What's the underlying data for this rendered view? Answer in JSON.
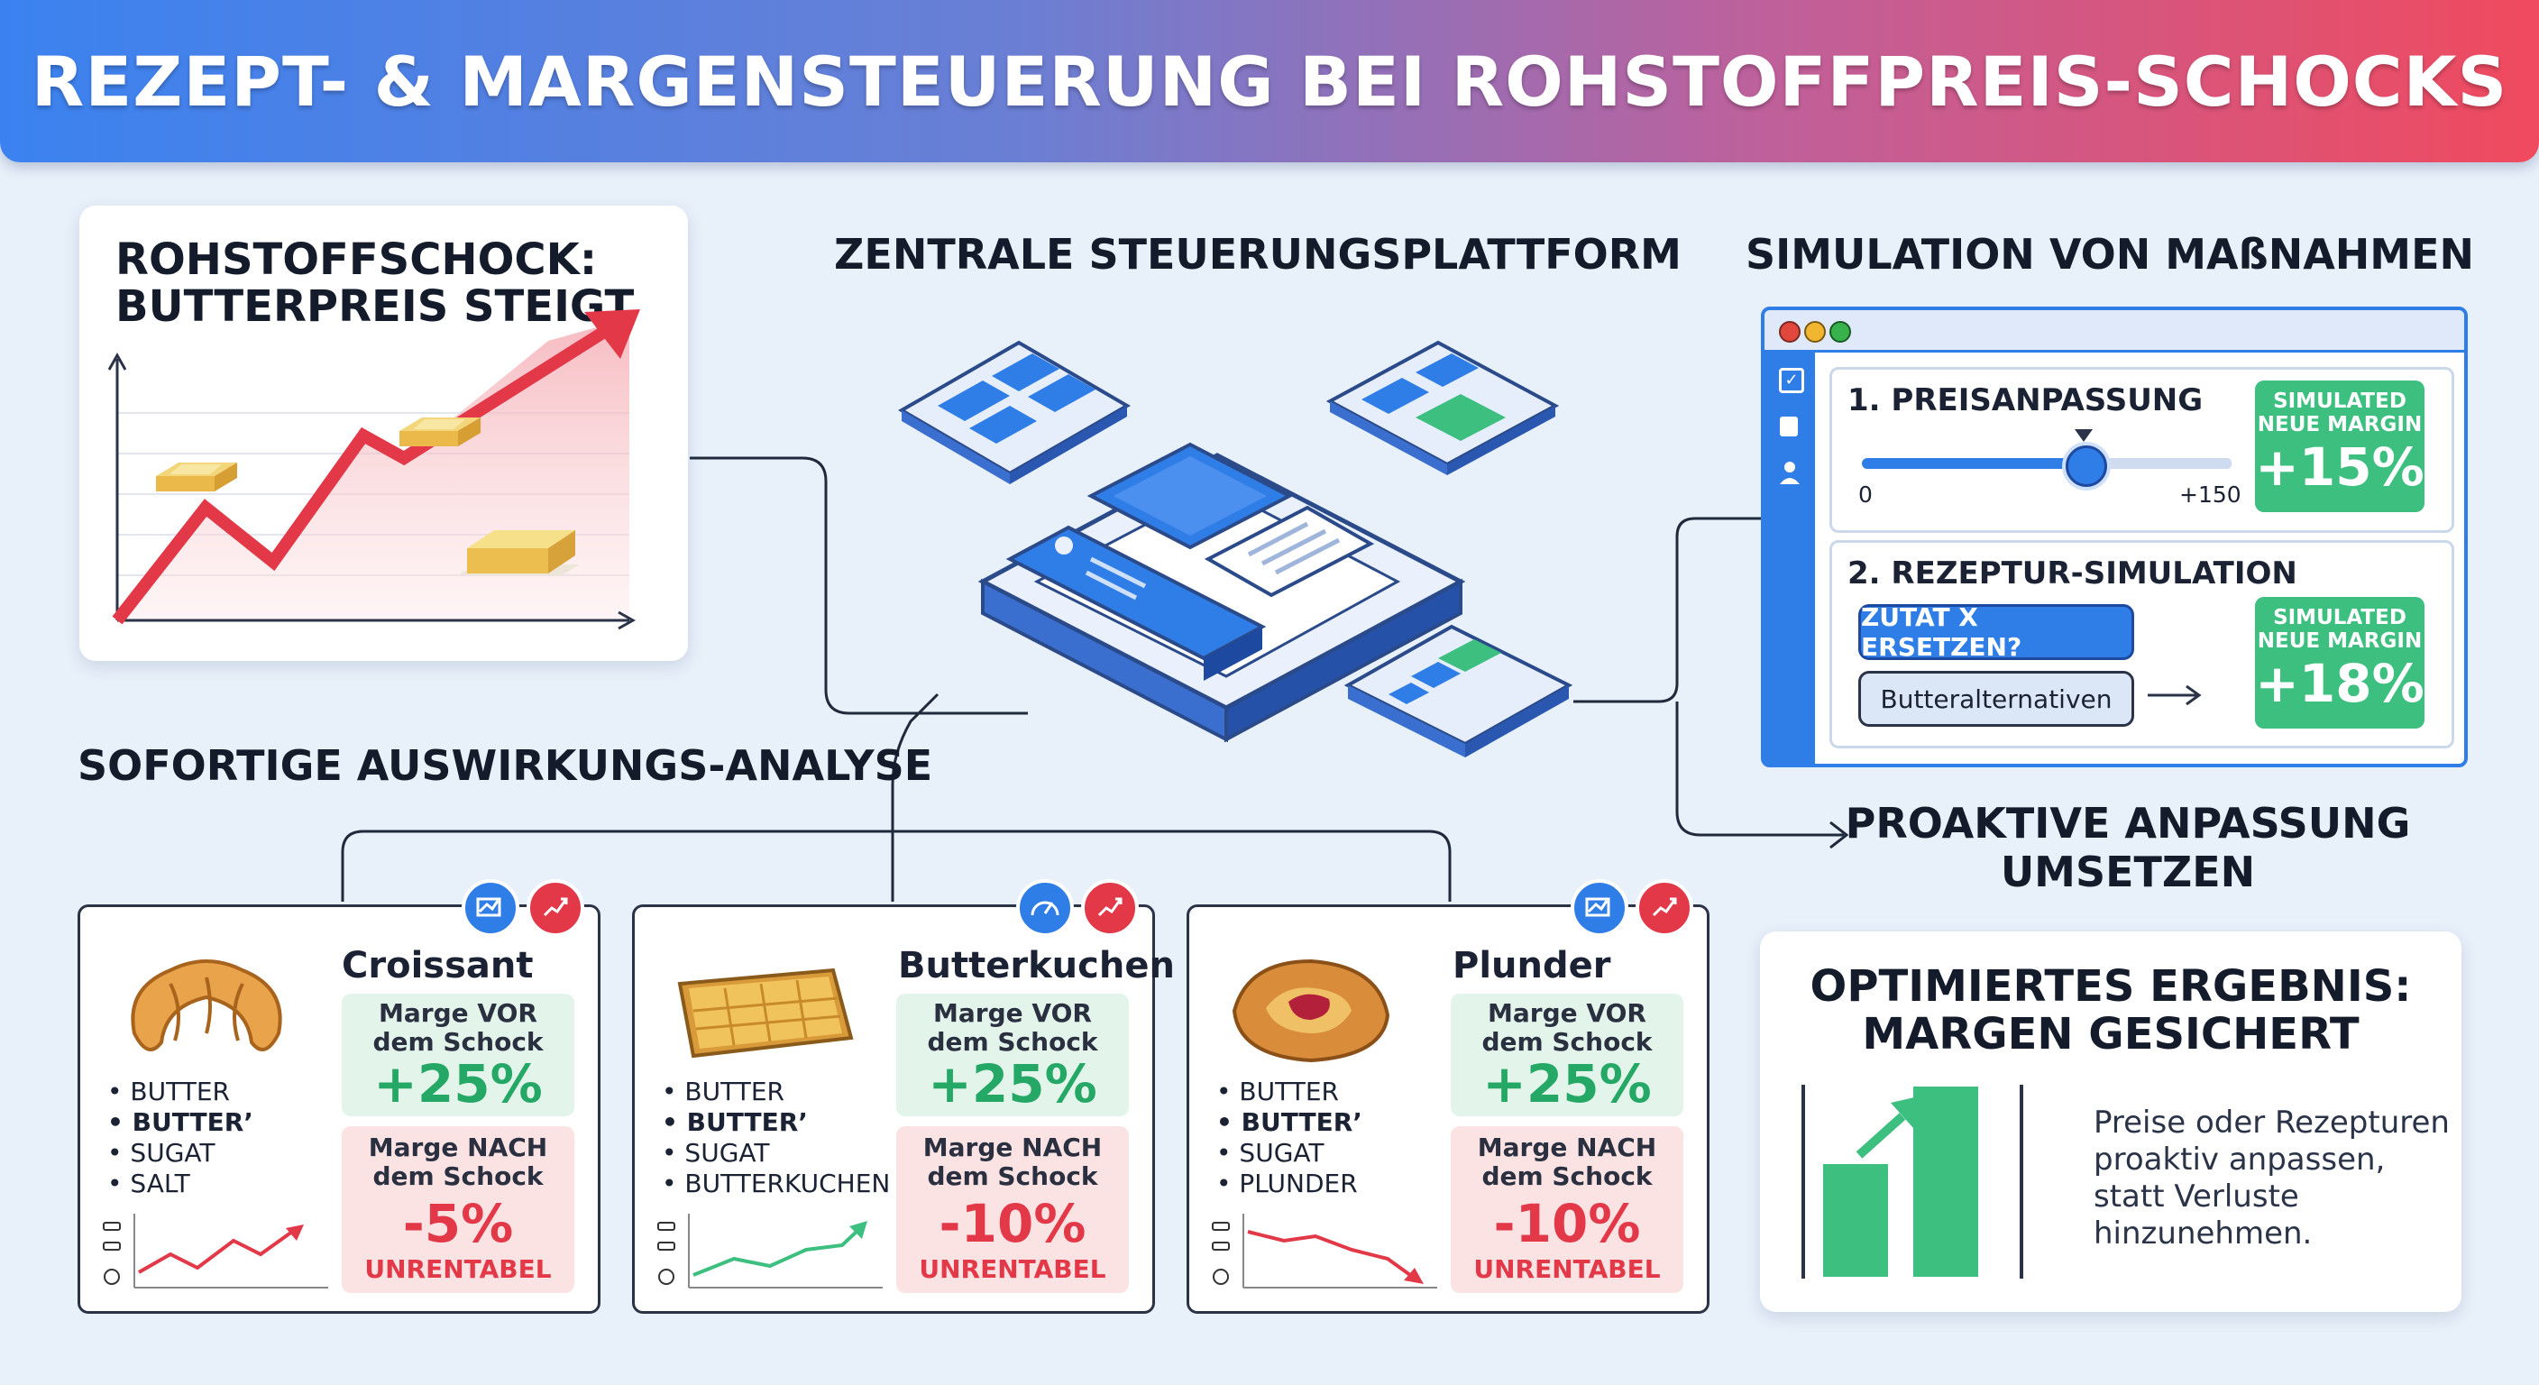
{
  "title": "REZEPT- & MARGENSTEUERUNG BEI ROHSTOFFPREIS-SCHOCKS",
  "shock": {
    "heading_line1": "ROHSTOFFSCHOCK:",
    "heading_line2": "BUTTERPREIS STEIGT"
  },
  "platform": {
    "heading": "ZENTRALE STEUERUNGSPLATTFORM"
  },
  "analysis": {
    "heading": "SOFORTIGE AUSWIRKUNGS-ANALYSE"
  },
  "products": [
    {
      "name": "Croissant",
      "ingredients": [
        "BUTTER",
        "BUTTER’",
        "SUGAT",
        "SALT"
      ],
      "before_label": "Marge VOR dem Schock",
      "before_value": "+25%",
      "after_label": "Marge NACH dem Schock",
      "after_value": "-5%",
      "status": "UNRENTABEL"
    },
    {
      "name": "Butterkuchen",
      "ingredients": [
        "BUTTER",
        "BUTTER’",
        "SUGAT",
        "BUTTERKUCHEN"
      ],
      "before_label": "Marge VOR dem Schock",
      "before_value": "+25%",
      "after_label": "Marge NACH dem Schock",
      "after_value": "-10%",
      "status": "UNRENTABEL"
    },
    {
      "name": "Plunder",
      "ingredients": [
        "BUTTER",
        "BUTTER’",
        "SUGAT",
        "PLUNDER"
      ],
      "before_label": "Marge VOR dem Schock",
      "before_value": "+25%",
      "after_label": "Marge NACH dem Schock",
      "after_value": "-10%",
      "status": "UNRENTABEL"
    }
  ],
  "simulation": {
    "heading": "SIMULATION VON MAßNAHMEN",
    "price": {
      "label": "1. PREISANPASSUNG",
      "min": "0",
      "max": "+150",
      "slider_fraction": 0.6,
      "margin_label_1": "SIMULATED",
      "margin_label_2": "NEUE MARGIN",
      "margin_value": "+15%"
    },
    "recipe": {
      "label": "2. REZEPTUR-SIMULATION",
      "replace_button": "ZUTAT X ERSETZEN?",
      "alternatives_button": "Butteralternativen",
      "margin_label_1": "SIMULATED",
      "margin_label_2": "NEUE MARGIN",
      "margin_value": "+18%"
    }
  },
  "proactive": {
    "line1": "PROAKTIVE ANPASSUNG",
    "line2": "UMSETZEN"
  },
  "result": {
    "heading_line1": "OPTIMIERTES ERGEBNIS:",
    "heading_line2": "MARGEN GESICHERT",
    "text_lines": [
      "Preise oder Rezepturen",
      "proaktiv anpassen,",
      "statt Verluste",
      "hinzunehmen."
    ]
  },
  "colors": {
    "green": "#3dbf80",
    "red": "#e23848",
    "blue": "#2f7de6"
  }
}
